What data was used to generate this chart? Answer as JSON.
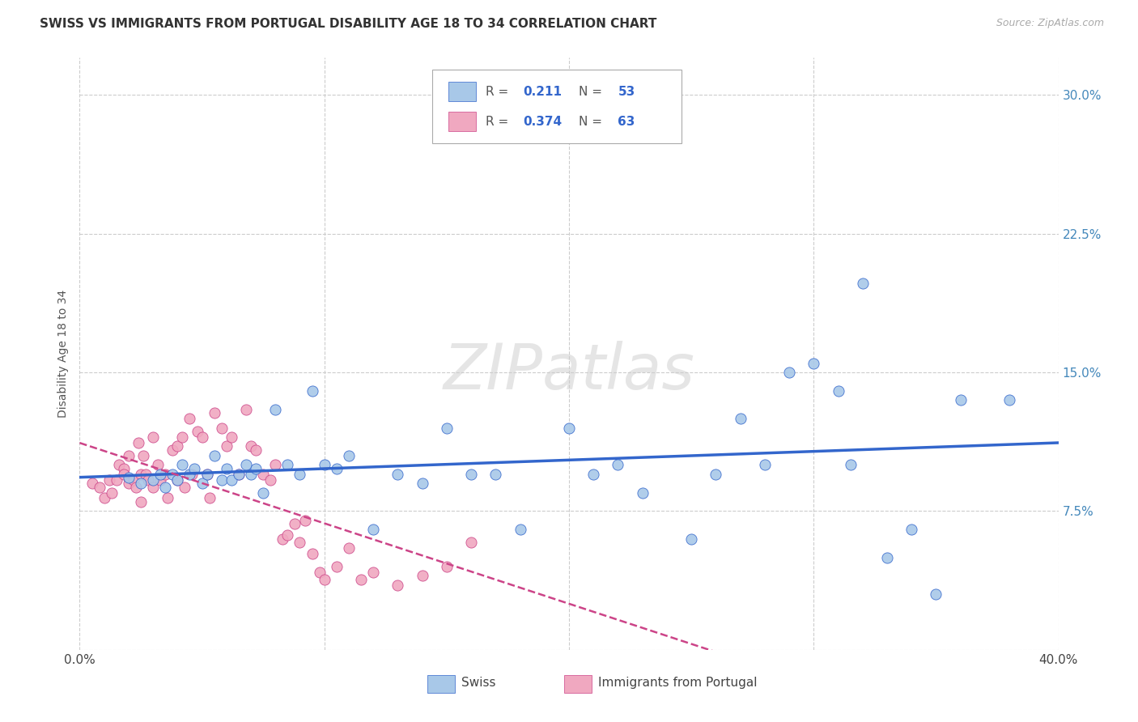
{
  "title": "SWISS VS IMMIGRANTS FROM PORTUGAL DISABILITY AGE 18 TO 34 CORRELATION CHART",
  "source": "Source: ZipAtlas.com",
  "ylabel": "Disability Age 18 to 34",
  "xlim": [
    0.0,
    0.4
  ],
  "ylim": [
    0.0,
    0.32
  ],
  "xticks": [
    0.0,
    0.1,
    0.2,
    0.3,
    0.4
  ],
  "xtick_labels": [
    "0.0%",
    "",
    "",
    "",
    "40.0%"
  ],
  "yticks": [
    0.0,
    0.075,
    0.15,
    0.225,
    0.3
  ],
  "ytick_labels": [
    "",
    "7.5%",
    "15.0%",
    "22.5%",
    "30.0%"
  ],
  "legend_swiss_R": "0.211",
  "legend_swiss_N": "53",
  "legend_port_R": "0.374",
  "legend_port_N": "63",
  "swiss_color": "#a8c8e8",
  "port_color": "#f0a8c0",
  "swiss_line_color": "#3366cc",
  "port_line_color": "#cc4488",
  "background_color": "#ffffff",
  "grid_color": "#cccccc",
  "swiss_x": [
    0.02,
    0.025,
    0.03,
    0.033,
    0.035,
    0.038,
    0.04,
    0.042,
    0.045,
    0.047,
    0.05,
    0.052,
    0.055,
    0.058,
    0.06,
    0.062,
    0.065,
    0.068,
    0.07,
    0.072,
    0.075,
    0.08,
    0.085,
    0.09,
    0.095,
    0.1,
    0.105,
    0.11,
    0.12,
    0.13,
    0.14,
    0.15,
    0.16,
    0.17,
    0.18,
    0.2,
    0.21,
    0.22,
    0.23,
    0.25,
    0.26,
    0.27,
    0.28,
    0.29,
    0.3,
    0.31,
    0.315,
    0.32,
    0.33,
    0.34,
    0.35,
    0.36,
    0.38
  ],
  "swiss_y": [
    0.093,
    0.09,
    0.092,
    0.095,
    0.088,
    0.095,
    0.092,
    0.1,
    0.095,
    0.098,
    0.09,
    0.095,
    0.105,
    0.092,
    0.098,
    0.092,
    0.095,
    0.1,
    0.095,
    0.098,
    0.085,
    0.13,
    0.1,
    0.095,
    0.14,
    0.1,
    0.098,
    0.105,
    0.065,
    0.095,
    0.09,
    0.12,
    0.095,
    0.095,
    0.065,
    0.12,
    0.095,
    0.1,
    0.085,
    0.06,
    0.095,
    0.125,
    0.1,
    0.15,
    0.155,
    0.14,
    0.1,
    0.198,
    0.05,
    0.065,
    0.03,
    0.135,
    0.135
  ],
  "port_x": [
    0.005,
    0.008,
    0.01,
    0.012,
    0.013,
    0.015,
    0.016,
    0.018,
    0.018,
    0.02,
    0.02,
    0.022,
    0.023,
    0.024,
    0.025,
    0.025,
    0.026,
    0.027,
    0.028,
    0.03,
    0.03,
    0.032,
    0.033,
    0.035,
    0.036,
    0.038,
    0.04,
    0.04,
    0.042,
    0.043,
    0.045,
    0.046,
    0.048,
    0.05,
    0.052,
    0.053,
    0.055,
    0.058,
    0.06,
    0.062,
    0.065,
    0.068,
    0.07,
    0.072,
    0.075,
    0.078,
    0.08,
    0.083,
    0.085,
    0.088,
    0.09,
    0.092,
    0.095,
    0.098,
    0.1,
    0.105,
    0.11,
    0.115,
    0.12,
    0.13,
    0.14,
    0.15,
    0.16
  ],
  "port_y": [
    0.09,
    0.088,
    0.082,
    0.092,
    0.085,
    0.092,
    0.1,
    0.098,
    0.095,
    0.105,
    0.09,
    0.092,
    0.088,
    0.112,
    0.095,
    0.08,
    0.105,
    0.095,
    0.092,
    0.115,
    0.088,
    0.1,
    0.092,
    0.095,
    0.082,
    0.108,
    0.11,
    0.092,
    0.115,
    0.088,
    0.125,
    0.095,
    0.118,
    0.115,
    0.095,
    0.082,
    0.128,
    0.12,
    0.11,
    0.115,
    0.095,
    0.13,
    0.11,
    0.108,
    0.095,
    0.092,
    0.1,
    0.06,
    0.062,
    0.068,
    0.058,
    0.07,
    0.052,
    0.042,
    0.038,
    0.045,
    0.055,
    0.038,
    0.042,
    0.035,
    0.04,
    0.045,
    0.058
  ]
}
